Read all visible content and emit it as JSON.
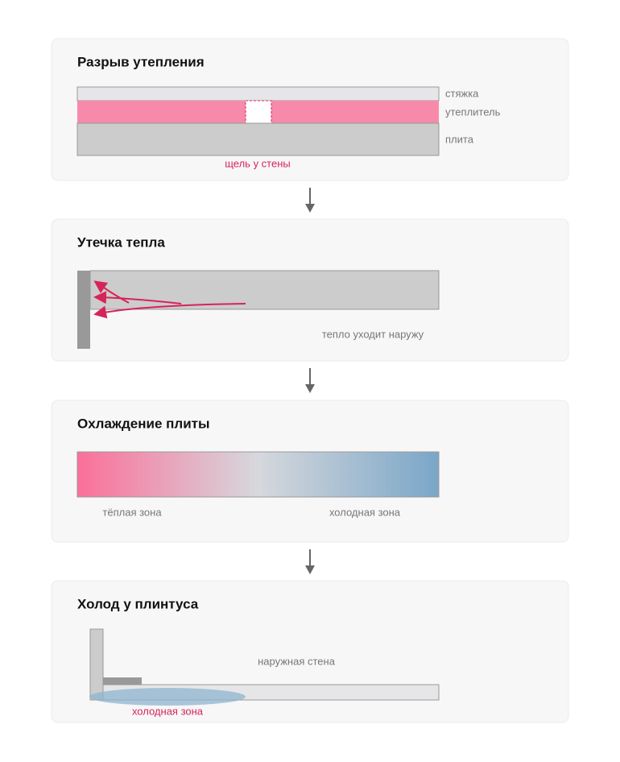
{
  "panels": [
    {
      "title": "Разрыв утепления",
      "labels": [
        "стяжка",
        "утеплитель",
        "плита",
        "щель у стены"
      ]
    },
    {
      "title": "Утечка тепла",
      "labels": [
        "тепло уходит наружу"
      ]
    },
    {
      "title": "Охлаждение плиты",
      "labels": [
        "тёплая зона",
        "холодная зона"
      ]
    },
    {
      "title": "Холод у плинтуса",
      "labels": [
        "наружная стена",
        "холодная зона"
      ]
    }
  ]
}
